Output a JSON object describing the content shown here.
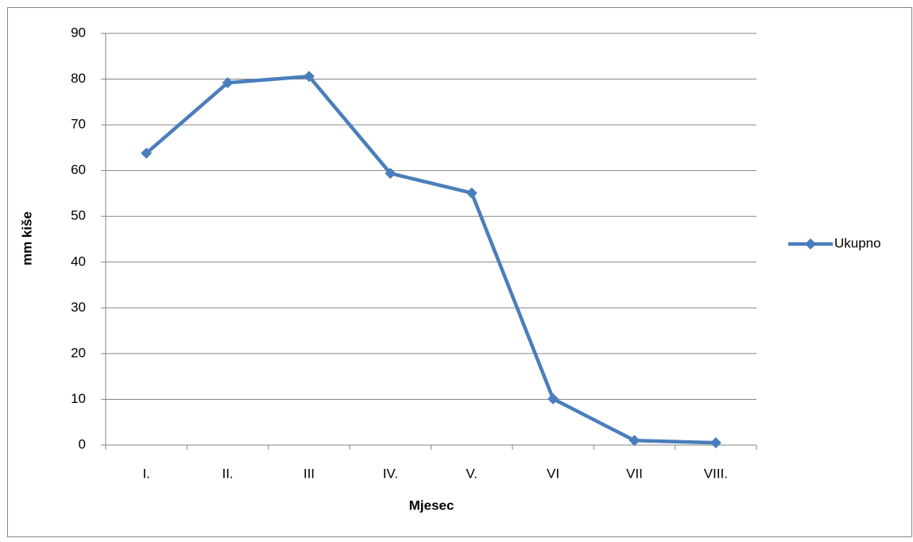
{
  "chart_data": {
    "type": "line",
    "x_label": "Mjesec",
    "y_label": "mm kiše",
    "categories": [
      "I.",
      "II.",
      "III",
      "IV.",
      "V.",
      "VI",
      "VII",
      "VIII."
    ],
    "series": [
      {
        "name": "Ukupno",
        "color": "#4a7ebb",
        "values": [
          63.8,
          79.2,
          80.6,
          59.4,
          55.1,
          10.1,
          1.0,
          0.5
        ]
      }
    ],
    "ylim": [
      0,
      90
    ],
    "yticks": [
      0,
      10,
      20,
      30,
      40,
      50,
      60,
      70,
      80,
      90
    ],
    "grid": true,
    "legend": "right"
  }
}
